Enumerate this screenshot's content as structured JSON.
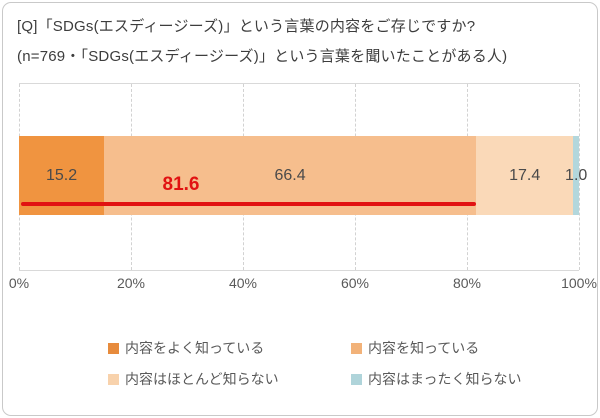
{
  "header": {
    "title_line1": "[Q]「SDGs(エスディージーズ)」という言葉の内容をご存じですか?",
    "title_line2": "(n=769・「SDGs(エスディージーズ)」という言葉を聞いたことがある人)"
  },
  "chart_data": {
    "type": "bar",
    "variant": "horizontal-stacked-single",
    "xlim": [
      0,
      100
    ],
    "x_ticks": [
      "0%",
      "20%",
      "40%",
      "60%",
      "80%",
      "100%"
    ],
    "grid": "vertical-dashed",
    "series": [
      {
        "name": "内容をよく知っている",
        "value": 15.2,
        "label": "15.2",
        "color": "#F09440"
      },
      {
        "name": "内容を知っている",
        "value": 66.4,
        "label": "66.4",
        "color": "#F6BE8D"
      },
      {
        "name": "内容はほとんど知らない",
        "value": 17.4,
        "label": "17.4",
        "color": "#FAD9B8"
      },
      {
        "name": "内容はまったく知らない",
        "value": 1.0,
        "label": "1.0",
        "color": "#B3D7DC"
      }
    ],
    "annotation": {
      "label": "81.6",
      "value": 81.6,
      "meaning": "内容をよく知っている+内容を知っている 合計",
      "color": "#E11212"
    },
    "legend_position": "bottom",
    "legend": [
      {
        "label": "内容をよく知っている",
        "color": "#E78B3C"
      },
      {
        "label": "内容を知っている",
        "color": "#F2B279"
      },
      {
        "label": "内容はほとんど知らない",
        "color": "#F8D2AC"
      },
      {
        "label": "内容はまったく知らない",
        "color": "#AFD4DA"
      }
    ]
  },
  "colors": {
    "card_border": "#c9c9c9",
    "plot_border": "#d9d9d9",
    "gridline": "#d2d2d2",
    "title_text": "#3d3d3d",
    "axis_text": "#595959",
    "bar_label_text": "#4a4a4a"
  }
}
